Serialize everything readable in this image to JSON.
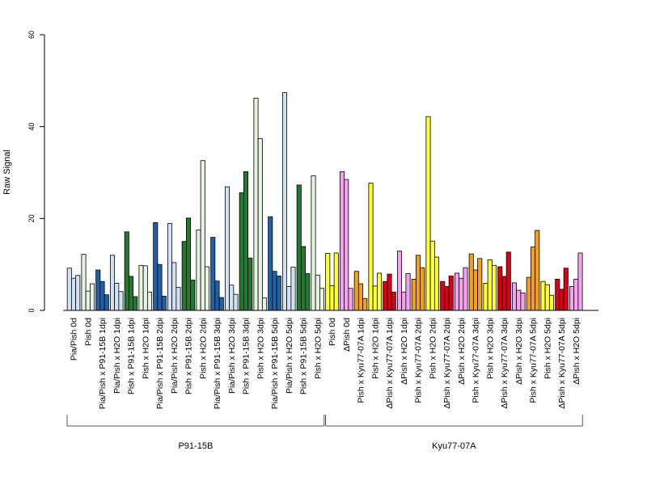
{
  "chart_data": {
    "type": "bar",
    "ylabel": "Raw Signal",
    "ylim": [
      0,
      60
    ],
    "yticks": [
      0,
      20,
      40,
      60
    ],
    "grid": false,
    "groups": [
      "P91-15B",
      "Kyu77-07A"
    ],
    "colors": {
      "lightblue": "#d3e2f3",
      "lightgreen": "#e6f3e3",
      "darkblue": "#2160a6",
      "darkgreen": "#23792f",
      "yellow": "#ffff33",
      "pink": "#f5a3f0",
      "orange": "#f2a01f",
      "red": "#d9001a"
    },
    "categories": [
      {
        "label": "Pia/Pish 0d",
        "color": "lightblue",
        "values": [
          9.2,
          7.0,
          7.6
        ]
      },
      {
        "label": "Pish 0d",
        "color": "lightgreen",
        "values": [
          12.2,
          4.2,
          5.8
        ]
      },
      {
        "label": "Pia/Pish x P91-15B 1dpi",
        "color": "darkblue",
        "values": [
          8.8,
          6.3,
          3.4
        ]
      },
      {
        "label": "Pia/Pish x H2O 1dpi",
        "color": "lightblue",
        "values": [
          12.0,
          5.9,
          4.1
        ]
      },
      {
        "label": "Pish x P91-15B 1dpi",
        "color": "darkgreen",
        "values": [
          17.1,
          7.4,
          3.0
        ]
      },
      {
        "label": "Pish x H2O 1dpi",
        "color": "lightgreen",
        "values": [
          9.8,
          9.7,
          4.0
        ]
      },
      {
        "label": "Pia/Pish x P91-15B 2dpi",
        "color": "darkblue",
        "values": [
          19.1,
          10.0,
          3.1
        ]
      },
      {
        "label": "Pia/Pish x H2O 2dpi",
        "color": "lightblue",
        "values": [
          18.9,
          10.4,
          5.0
        ]
      },
      {
        "label": "Pish x P91-15B 2dpi",
        "color": "darkgreen",
        "values": [
          15.0,
          20.1,
          6.6
        ]
      },
      {
        "label": "Pish x H2O 2dpi",
        "color": "lightgreen",
        "values": [
          17.5,
          32.6,
          9.5
        ]
      },
      {
        "label": "Pia/Pish x P91-15B 3dpi",
        "color": "darkblue",
        "values": [
          15.9,
          6.4,
          2.8
        ]
      },
      {
        "label": "Pia/Pish x H2O 3dpi",
        "color": "lightblue",
        "values": [
          26.9,
          5.5,
          3.5
        ]
      },
      {
        "label": "Pish x P91-15B 3dpi",
        "color": "darkgreen",
        "values": [
          25.6,
          30.2,
          11.4
        ]
      },
      {
        "label": "Pish x H2O 3dpi",
        "color": "lightgreen",
        "values": [
          46.2,
          37.4,
          2.7
        ]
      },
      {
        "label": "Pia/Pish x P91-15B 5dpi",
        "color": "darkblue",
        "values": [
          20.4,
          8.5,
          7.5
        ]
      },
      {
        "label": "Pia/Pish x H2O 5dpi",
        "color": "lightblue",
        "values": [
          47.4,
          5.2,
          9.4
        ]
      },
      {
        "label": "Pish x P91-15B 5dpi",
        "color": "darkgreen",
        "values": [
          27.3,
          13.9,
          8.0
        ]
      },
      {
        "label": "Pish x H2O 5dpi",
        "color": "lightgreen",
        "values": [
          29.3,
          7.7,
          4.8
        ]
      },
      {
        "label": "Pish 0d",
        "color": "yellow",
        "values": [
          12.4,
          5.4,
          12.5
        ]
      },
      {
        "label": "ΔPish 0d",
        "color": "pink",
        "values": [
          30.2,
          28.5,
          4.8
        ]
      },
      {
        "label": "Pish x Kyu77-07A 1dpi",
        "color": "orange",
        "values": [
          8.5,
          5.8,
          2.6
        ]
      },
      {
        "label": "Pish x H2O 1dpi",
        "color": "yellow",
        "values": [
          27.7,
          5.3,
          8.1
        ]
      },
      {
        "label": "ΔPish x Kyu77-07A 1dpi",
        "color": "red",
        "values": [
          6.3,
          7.9,
          4.0
        ]
      },
      {
        "label": "ΔPish x H2O 1dpi",
        "color": "pink",
        "values": [
          12.9,
          4.0,
          8.0
        ]
      },
      {
        "label": "Pish x Kyu77-07A 2dpi",
        "color": "orange",
        "values": [
          6.8,
          12.0,
          9.3
        ]
      },
      {
        "label": "Pish x H2O 2dpi",
        "color": "yellow",
        "values": [
          42.2,
          15.1,
          11.6
        ]
      },
      {
        "label": "ΔPish x Kyu77-07A 2dpi",
        "color": "red",
        "values": [
          6.3,
          5.2,
          7.5
        ]
      },
      {
        "label": "ΔPish x H2O 2dpi",
        "color": "pink",
        "values": [
          8.1,
          7.0,
          9.3
        ]
      },
      {
        "label": "Pish x Kyu77-07A 3dpi",
        "color": "orange",
        "values": [
          12.3,
          8.8,
          11.3
        ]
      },
      {
        "label": "Pish x H2O 3dpi",
        "color": "yellow",
        "values": [
          5.9,
          11.0,
          9.8
        ]
      },
      {
        "label": "ΔPish x Kyu77-07A 3dpi",
        "color": "red",
        "values": [
          9.5,
          7.4,
          12.7
        ]
      },
      {
        "label": "ΔPish x H2O 3dpi",
        "color": "pink",
        "values": [
          6.0,
          4.4,
          3.8
        ]
      },
      {
        "label": "Pish x Kyu77-07A 5dpi",
        "color": "orange",
        "values": [
          7.2,
          13.8,
          17.4
        ]
      },
      {
        "label": "Pish x H2O 5dpi",
        "color": "yellow",
        "values": [
          6.3,
          5.6,
          3.3
        ]
      },
      {
        "label": "ΔPish x Kyu77-07A 5dpi",
        "color": "red",
        "values": [
          6.8,
          4.6,
          9.2
        ]
      },
      {
        "label": "ΔPish x H2O 5dpi",
        "color": "pink",
        "values": [
          5.2,
          6.8,
          12.5
        ]
      }
    ]
  }
}
